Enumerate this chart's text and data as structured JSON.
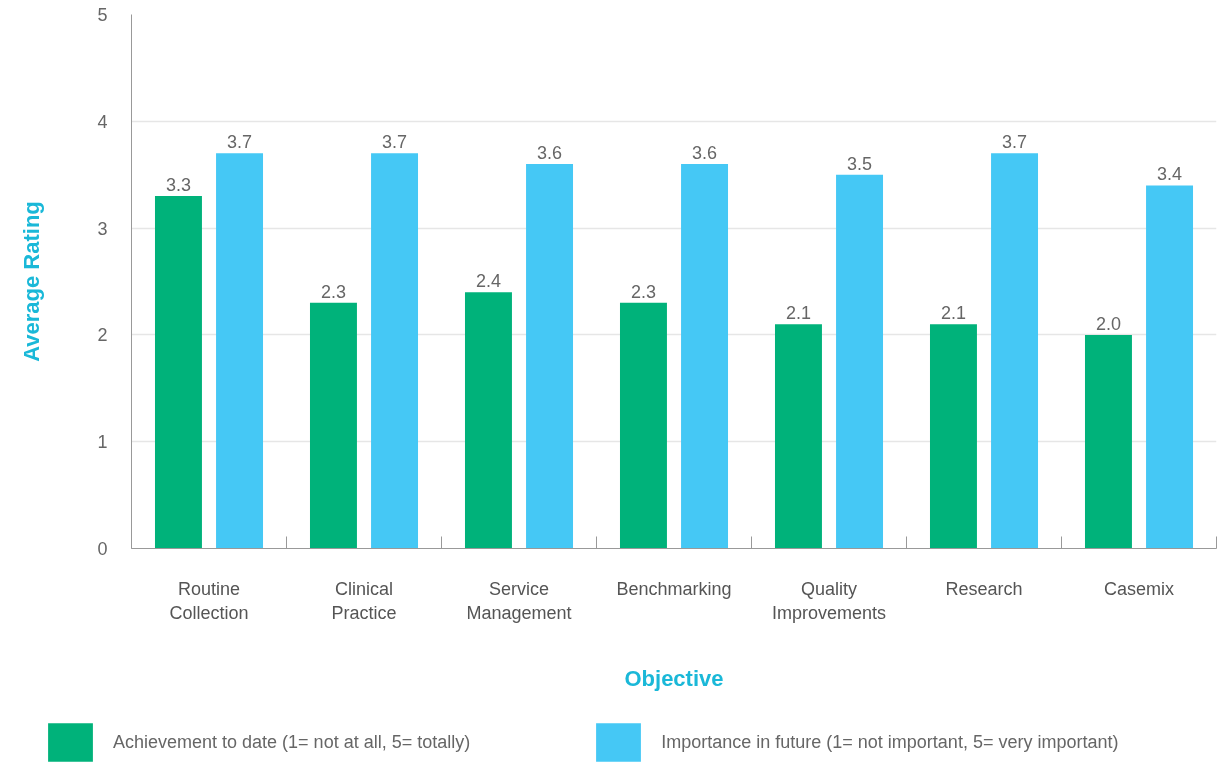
{
  "chart_data": {
    "type": "bar",
    "xlabel": "Objective",
    "ylabel": "Average Rating",
    "categories": [
      "Routine Collection",
      "Clinical Practice",
      "Service Management",
      "Benchmarking",
      "Quality Improvements",
      "Research",
      "Casemix"
    ],
    "series": [
      {
        "name": "Achievement to date (1= not at all, 5= totally)",
        "color": "#00b27a",
        "values": [
          3.3,
          2.3,
          2.4,
          2.3,
          2.1,
          2.1,
          2.0
        ],
        "value_labels": [
          "3.3",
          "2.3",
          "2.4",
          "2.3",
          "2.1",
          "2.1",
          "2.0"
        ]
      },
      {
        "name": "Importance in future (1= not important, 5= very important)",
        "color": "#45c8f5",
        "values": [
          3.7,
          3.7,
          3.6,
          3.6,
          3.5,
          3.7,
          3.4
        ],
        "value_labels": [
          "3.7",
          "3.7",
          "3.6",
          "3.6",
          "3.5",
          "3.7",
          "3.4"
        ]
      }
    ],
    "ylim": [
      0,
      5
    ],
    "yticks": [
      0,
      1,
      2,
      3,
      4,
      5
    ],
    "grid": "y",
    "legend": "bottom"
  }
}
